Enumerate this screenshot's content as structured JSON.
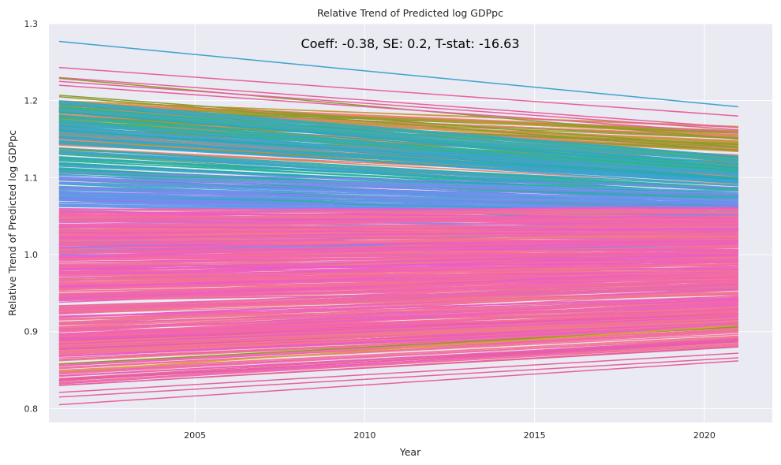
{
  "chart_data": {
    "type": "line",
    "title": "Relative Trend of Predicted log GDPpc",
    "xlabel": "Year",
    "ylabel": "Relative Trend of Predicted log GDPpc",
    "annotation": "Coeff: -0.38, SE: 0.2, T-stat: -16.63",
    "xlim": [
      2000.7,
      2022.0
    ],
    "ylim": [
      0.782,
      1.3
    ],
    "x_ticks": [
      2005,
      2010,
      2015,
      2020
    ],
    "y_ticks": [
      0.8,
      0.9,
      1.0,
      1.1,
      1.2,
      1.3
    ],
    "x_tick_labels": [
      "2005",
      "2010",
      "2015",
      "2020"
    ],
    "y_tick_labels": [
      "0.8",
      "0.9",
      "1.0",
      "1.1",
      "1.2",
      "1.3"
    ],
    "x_start": 2001,
    "x_end": 2021,
    "grid": true,
    "legend": "none",
    "background": "#eaeaf2",
    "highlight_series": [
      {
        "start": 1.277,
        "end": 1.192,
        "color": "#3ba3d0"
      },
      {
        "start": 1.243,
        "end": 1.18,
        "color": "#e8609c"
      },
      {
        "start": 1.23,
        "end": 1.165,
        "color": "#e8609c"
      },
      {
        "start": 1.229,
        "end": 1.15,
        "color": "#8c9a2c"
      },
      {
        "start": 1.225,
        "end": 1.162,
        "color": "#e8609c"
      },
      {
        "start": 1.22,
        "end": 1.158,
        "color": "#e8609c"
      },
      {
        "start": 1.207,
        "end": 1.14,
        "color": "#8c9a2c"
      },
      {
        "start": 1.205,
        "end": 1.135,
        "color": "#8c9a2c"
      },
      {
        "start": 0.805,
        "end": 0.862,
        "color": "#e8609c"
      },
      {
        "start": 0.815,
        "end": 0.866,
        "color": "#e8609c"
      },
      {
        "start": 0.821,
        "end": 0.872,
        "color": "#e8609c"
      },
      {
        "start": 0.83,
        "end": 0.88,
        "color": "#e8609c"
      },
      {
        "start": 0.838,
        "end": 0.887,
        "color": "#e8609c"
      },
      {
        "start": 0.858,
        "end": 0.906,
        "color": "#8c9a2c"
      },
      {
        "start": 0.848,
        "end": 0.908,
        "color": "#d4a72c"
      }
    ],
    "bulk_bands": [
      {
        "start_range": [
          1.13,
          1.2
        ],
        "end_range": [
          1.08,
          1.17
        ],
        "count": 90,
        "colors": [
          "#8c9a2c",
          "#a39a2c",
          "#c69b3a",
          "#e0866a",
          "#f1786e"
        ]
      },
      {
        "start_range": [
          1.07,
          1.2
        ],
        "end_range": [
          1.04,
          1.13
        ],
        "count": 150,
        "colors": [
          "#2ab0a3",
          "#28a9b5",
          "#3ba3d0",
          "#36b38e",
          "#4aa3c6"
        ]
      },
      {
        "start_range": [
          1.0,
          1.11
        ],
        "end_range": [
          1.0,
          1.09
        ],
        "count": 70,
        "colors": [
          "#6f8ef0",
          "#8a7ff2",
          "#6b9ae8"
        ]
      },
      {
        "start_range": [
          0.87,
          1.06
        ],
        "end_range": [
          0.9,
          1.07
        ],
        "count": 330,
        "colors": [
          "#f2709b",
          "#f564b0",
          "#ea5dc8",
          "#f07a8e",
          "#e86aa8"
        ]
      },
      {
        "start_range": [
          0.83,
          0.9
        ],
        "end_range": [
          0.88,
          0.93
        ],
        "count": 70,
        "colors": [
          "#f2709b",
          "#e8609c",
          "#f07a8e",
          "#ea5dc8"
        ]
      }
    ]
  }
}
